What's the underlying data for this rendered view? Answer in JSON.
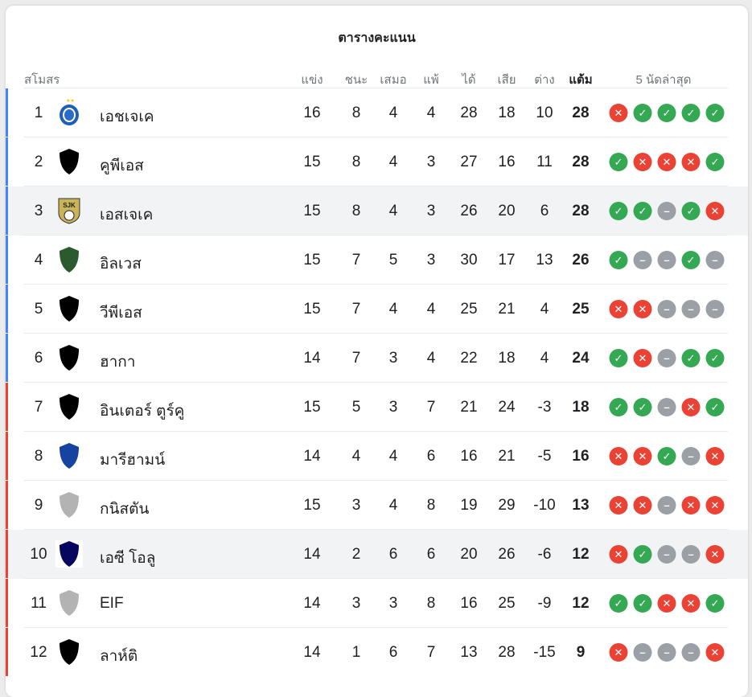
{
  "title": "ตารางคะแนน",
  "headers": {
    "club": "สโมสร",
    "played": "แข่ง",
    "won": "ชนะ",
    "drawn": "เสมอ",
    "lost": "แพ้",
    "gf": "ได้",
    "ga": "เสีย",
    "gd": "ต่าง",
    "pts": "แต้ม",
    "form": "5 นัดล่าสุด"
  },
  "colors": {
    "promotion": "#4285f4",
    "relegation": "#ea4335",
    "win": "#34a853",
    "loss": "#ea4335",
    "draw": "#9aa0a6",
    "highlight": "#f1f3f4"
  },
  "rows": [
    {
      "rank": "1",
      "name": "เอชเจเค",
      "logo": "hjk-crest",
      "played": "16",
      "won": "8",
      "drawn": "4",
      "lost": "4",
      "gf": "28",
      "ga": "18",
      "gd": "10",
      "pts": "28",
      "form": [
        "L",
        "W",
        "W",
        "W",
        "W"
      ],
      "zone": "promotion",
      "highlight": false
    },
    {
      "rank": "2",
      "name": "คูพีเอส",
      "logo": "black-shield",
      "played": "15",
      "won": "8",
      "drawn": "4",
      "lost": "3",
      "gf": "27",
      "ga": "16",
      "gd": "11",
      "pts": "28",
      "form": [
        "W",
        "L",
        "L",
        "L",
        "W"
      ],
      "zone": "promotion",
      "highlight": false
    },
    {
      "rank": "3",
      "name": "เอสเจเค",
      "logo": "sjk-crest",
      "played": "15",
      "won": "8",
      "drawn": "4",
      "lost": "3",
      "gf": "26",
      "ga": "20",
      "gd": "6",
      "pts": "28",
      "form": [
        "W",
        "W",
        "D",
        "W",
        "L"
      ],
      "zone": "promotion",
      "highlight": true
    },
    {
      "rank": "4",
      "name": "อิลเวส",
      "logo": "green-shield",
      "played": "15",
      "won": "7",
      "drawn": "5",
      "lost": "3",
      "gf": "30",
      "ga": "17",
      "gd": "13",
      "pts": "26",
      "form": [
        "W",
        "D",
        "D",
        "W",
        "D"
      ],
      "zone": "promotion",
      "highlight": false
    },
    {
      "rank": "5",
      "name": "วีพีเอส",
      "logo": "black-shield",
      "played": "15",
      "won": "7",
      "drawn": "4",
      "lost": "4",
      "gf": "25",
      "ga": "21",
      "gd": "4",
      "pts": "25",
      "form": [
        "L",
        "L",
        "D",
        "D",
        "D"
      ],
      "zone": "promotion",
      "highlight": false
    },
    {
      "rank": "6",
      "name": "ฮากา",
      "logo": "black-shield",
      "played": "14",
      "won": "7",
      "drawn": "3",
      "lost": "4",
      "gf": "22",
      "ga": "18",
      "gd": "4",
      "pts": "24",
      "form": [
        "W",
        "L",
        "D",
        "W",
        "W"
      ],
      "zone": "promotion",
      "highlight": false
    },
    {
      "rank": "7",
      "name": "อินเตอร์ ตูร์คู",
      "logo": "black-shield",
      "played": "15",
      "won": "5",
      "drawn": "3",
      "lost": "7",
      "gf": "21",
      "ga": "24",
      "gd": "-3",
      "pts": "18",
      "form": [
        "W",
        "W",
        "D",
        "L",
        "W"
      ],
      "zone": "relegation",
      "highlight": false
    },
    {
      "rank": "8",
      "name": "มารีฮามน์",
      "logo": "blue-shield",
      "played": "14",
      "won": "4",
      "drawn": "4",
      "lost": "6",
      "gf": "16",
      "ga": "21",
      "gd": "-5",
      "pts": "16",
      "form": [
        "L",
        "L",
        "W",
        "D",
        "L"
      ],
      "zone": "relegation",
      "highlight": false
    },
    {
      "rank": "9",
      "name": "กนิสตัน",
      "logo": "grey-shield",
      "played": "15",
      "won": "3",
      "drawn": "4",
      "lost": "8",
      "gf": "19",
      "ga": "29",
      "gd": "-10",
      "pts": "13",
      "form": [
        "L",
        "L",
        "D",
        "L",
        "L"
      ],
      "zone": "relegation",
      "highlight": false
    },
    {
      "rank": "10",
      "name": "เอซี โอลู",
      "logo": "navy-shield",
      "played": "14",
      "won": "2",
      "drawn": "6",
      "lost": "6",
      "gf": "20",
      "ga": "26",
      "gd": "-6",
      "pts": "12",
      "form": [
        "L",
        "W",
        "D",
        "D",
        "L"
      ],
      "zone": "relegation",
      "highlight": true
    },
    {
      "rank": "11",
      "name": "EIF",
      "logo": "grey-shield",
      "played": "14",
      "won": "3",
      "drawn": "3",
      "lost": "8",
      "gf": "16",
      "ga": "25",
      "gd": "-9",
      "pts": "12",
      "form": [
        "W",
        "W",
        "L",
        "L",
        "W"
      ],
      "zone": "relegation",
      "highlight": false
    },
    {
      "rank": "12",
      "name": "ลาห์ติ",
      "logo": "black-shield",
      "played": "14",
      "won": "1",
      "drawn": "6",
      "lost": "7",
      "gf": "13",
      "ga": "28",
      "gd": "-15",
      "pts": "9",
      "form": [
        "L",
        "D",
        "D",
        "D",
        "L"
      ],
      "zone": "relegation",
      "highlight": false
    }
  ]
}
